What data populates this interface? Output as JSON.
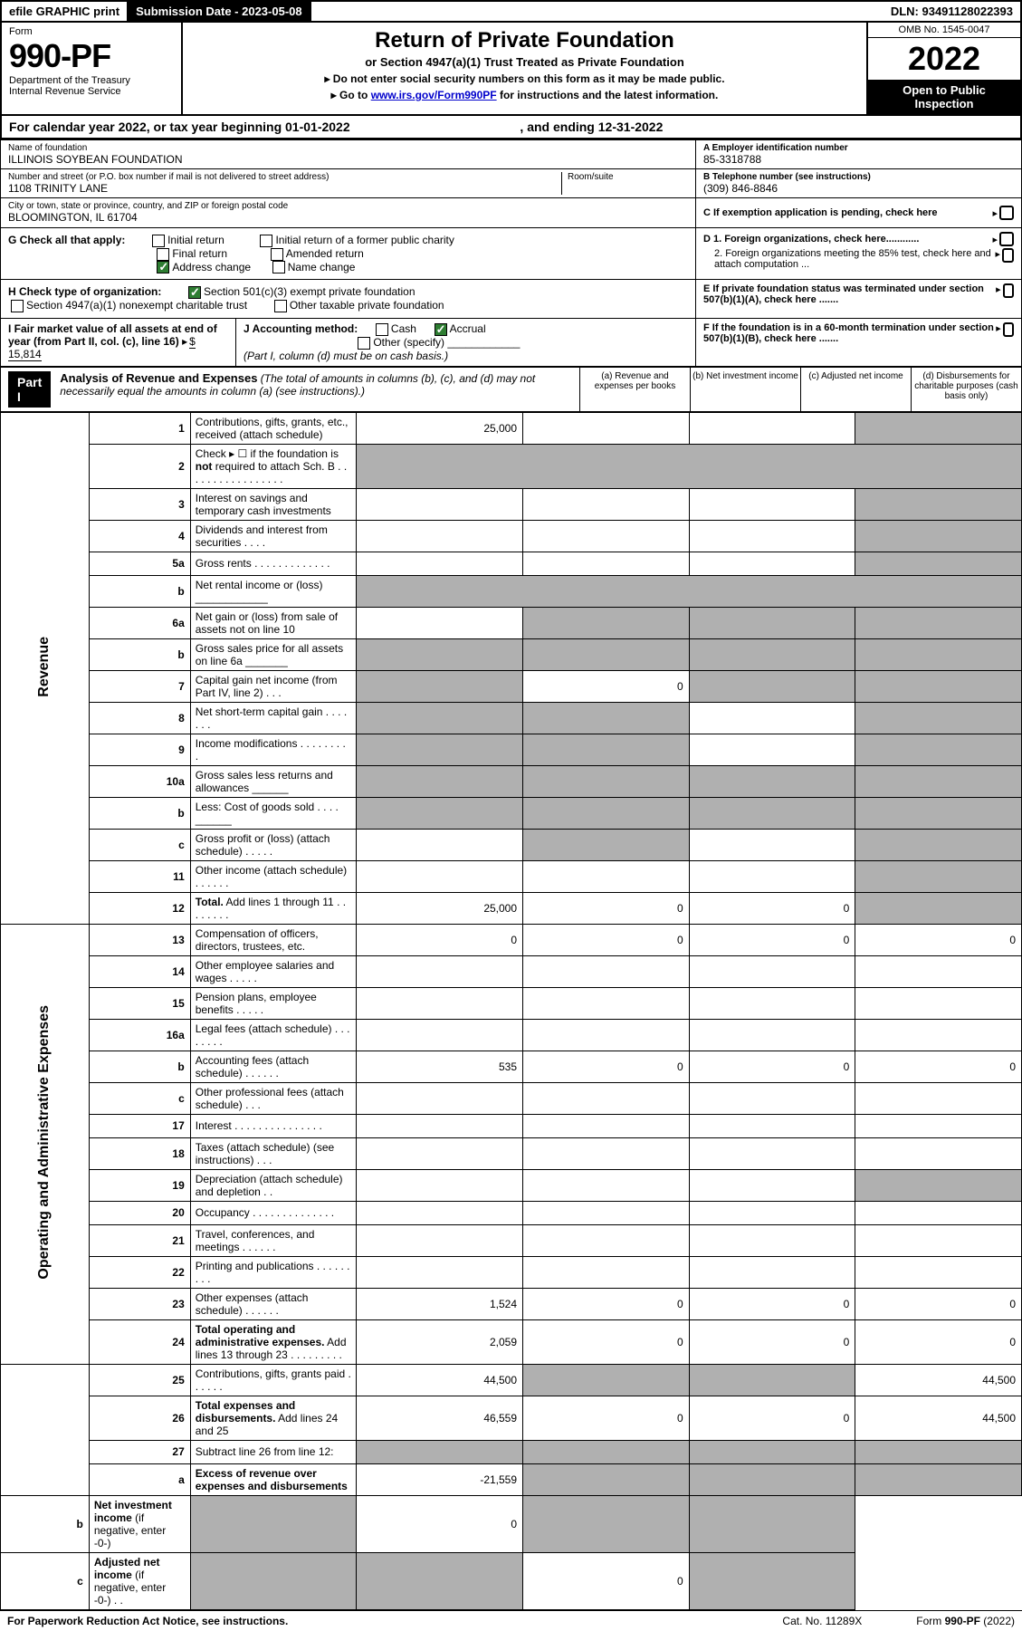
{
  "topbar": {
    "efile": "efile GRAPHIC print",
    "subdate_label": "Submission Date - ",
    "subdate": "2023-05-08",
    "dln_label": "DLN: ",
    "dln": "93491128022393"
  },
  "header": {
    "form_word": "Form",
    "form_no": "990-PF",
    "dept1": "Department of the Treasury",
    "dept2": "Internal Revenue Service",
    "title": "Return of Private Foundation",
    "subtitle": "or Section 4947(a)(1) Trust Treated as Private Foundation",
    "instr1": "▸ Do not enter social security numbers on this form as it may be made public.",
    "instr2_pre": "▸ Go to ",
    "instr2_link": "www.irs.gov/Form990PF",
    "instr2_post": " for instructions and the latest information.",
    "omb": "OMB No. 1545-0047",
    "year": "2022",
    "inspect1": "Open to Public",
    "inspect2": "Inspection"
  },
  "calyear": {
    "pre": "For calendar year 2022, or tax year beginning ",
    "begin": "01-01-2022",
    "mid": " , and ending ",
    "end": "12-31-2022"
  },
  "entity": {
    "name_label": "Name of foundation",
    "name": "ILLINOIS SOYBEAN FOUNDATION",
    "addr_label": "Number and street (or P.O. box number if mail is not delivered to street address)",
    "addr": "1108 TRINITY LANE",
    "room_label": "Room/suite",
    "city_label": "City or town, state or province, country, and ZIP or foreign postal code",
    "city": "BLOOMINGTON, IL  61704",
    "a_label": "A Employer identification number",
    "a_val": "85-3318788",
    "b_label": "B Telephone number (see instructions)",
    "b_val": "(309) 846-8846",
    "c_label": "C If exemption application is pending, check here"
  },
  "g": {
    "label": "G Check all that apply:",
    "opts": [
      "Initial return",
      "Initial return of a former public charity",
      "Final return",
      "Amended return",
      "Address change",
      "Name change"
    ],
    "checked_idx": 4,
    "d1": "D 1. Foreign organizations, check here............",
    "d2": "2. Foreign organizations meeting the 85% test, check here and attach computation ..."
  },
  "h": {
    "label": "H Check type of organization:",
    "opt1": "Section 501(c)(3) exempt private foundation",
    "opt2": "Section 4947(a)(1) nonexempt charitable trust",
    "opt3": "Other taxable private foundation",
    "e1": "E If private foundation status was terminated under section 507(b)(1)(A), check here ......."
  },
  "ij": {
    "i_label": "I Fair market value of all assets at end of year (from Part II, col. (c), line 16)",
    "i_val": "$  15,814",
    "j_label": "J Accounting method:",
    "j_cash": "Cash",
    "j_accrual": "Accrual",
    "j_other": "Other (specify)",
    "j_note": "(Part I, column (d) must be on cash basis.)",
    "f1": "F If the foundation is in a 60-month termination under section 507(b)(1)(B), check here ......."
  },
  "part1": {
    "label": "Part I",
    "title": "Analysis of Revenue and Expenses",
    "note": "(The total of amounts in columns (b), (c), and (d) may not necessarily equal the amounts in column (a) (see instructions).)",
    "cols": {
      "a": "(a) Revenue and expenses per books",
      "b": "(b) Net investment income",
      "c": "(c) Adjusted net income",
      "d": "(d) Disbursements for charitable purposes (cash basis only)"
    }
  },
  "sections": {
    "revenue": "Revenue",
    "opex": "Operating and Administrative Expenses"
  },
  "rows": [
    {
      "n": "1",
      "d": "Contributions, gifts, grants, etc., received (attach schedule)",
      "a": "25,000",
      "b": "",
      "c": "",
      "dcol": "",
      "dg": true
    },
    {
      "n": "2",
      "d": "Check ▸ ☐ if the foundation is <b>not</b> required to attach Sch. B  . . . . . . . . . . . . . . . . .",
      "nocols": true
    },
    {
      "n": "3",
      "d": "Interest on savings and temporary cash investments",
      "a": "",
      "b": "",
      "c": "",
      "dcol": "",
      "dg": true
    },
    {
      "n": "4",
      "d": "Dividends and interest from securities  . . . .",
      "a": "",
      "b": "",
      "c": "",
      "dcol": "",
      "dg": true
    },
    {
      "n": "5a",
      "d": "Gross rents  . . . . . . . . . . . . .",
      "a": "",
      "b": "",
      "c": "",
      "dcol": "",
      "dg": true
    },
    {
      "n": "b",
      "d": "Net rental income or (loss)  ____________",
      "nocols": true
    },
    {
      "n": "6a",
      "d": "Net gain or (loss) from sale of assets not on line 10",
      "a": "",
      "b": "",
      "bg": true,
      "c": "",
      "cg": true,
      "dcol": "",
      "dg": true
    },
    {
      "n": "b",
      "d": "Gross sales price for all assets on line 6a _______",
      "nocols": true,
      "allgrey": true
    },
    {
      "n": "7",
      "d": "Capital gain net income (from Part IV, line 2)  . . .",
      "a": "",
      "ag": true,
      "b": "0",
      "c": "",
      "cg": true,
      "dcol": "",
      "dg": true
    },
    {
      "n": "8",
      "d": "Net short-term capital gain  . . . . . . .",
      "a": "",
      "ag": true,
      "b": "",
      "bg": true,
      "c": "",
      "dcol": "",
      "dg": true
    },
    {
      "n": "9",
      "d": "Income modifications  . . . . . . . . .",
      "a": "",
      "ag": true,
      "b": "",
      "bg": true,
      "c": "",
      "dcol": "",
      "dg": true
    },
    {
      "n": "10a",
      "d": "Gross sales less returns and allowances  ______",
      "nocols": true,
      "allgrey": true
    },
    {
      "n": "b",
      "d": "Less: Cost of goods sold   . . . .  ______",
      "nocols": true,
      "allgrey": true
    },
    {
      "n": "c",
      "d": "Gross profit or (loss) (attach schedule)  . . . . .",
      "a": "",
      "b": "",
      "bg": true,
      "c": "",
      "dcol": "",
      "dg": true
    },
    {
      "n": "11",
      "d": "Other income (attach schedule)  . . . . . .",
      "a": "",
      "b": "",
      "c": "",
      "dcol": "",
      "dg": true
    },
    {
      "n": "12",
      "d": "<b>Total.</b> Add lines 1 through 11  . . . . . . . .",
      "a": "25,000",
      "b": "0",
      "c": "0",
      "dcol": "",
      "dg": true
    },
    {
      "n": "13",
      "d": "Compensation of officers, directors, trustees, etc.",
      "a": "0",
      "b": "0",
      "c": "0",
      "dcol": "0",
      "sec": "opex"
    },
    {
      "n": "14",
      "d": "Other employee salaries and wages  . . . . .",
      "a": "",
      "b": "",
      "c": "",
      "dcol": ""
    },
    {
      "n": "15",
      "d": "Pension plans, employee benefits  . . . . .",
      "a": "",
      "b": "",
      "c": "",
      "dcol": ""
    },
    {
      "n": "16a",
      "d": "Legal fees (attach schedule) . . . . . . . .",
      "a": "",
      "b": "",
      "c": "",
      "dcol": ""
    },
    {
      "n": "b",
      "d": "Accounting fees (attach schedule) . . . . . .",
      "a": "535",
      "b": "0",
      "c": "0",
      "dcol": "0"
    },
    {
      "n": "c",
      "d": "Other professional fees (attach schedule)  . . .",
      "a": "",
      "b": "",
      "c": "",
      "dcol": ""
    },
    {
      "n": "17",
      "d": "Interest  . . . . . . . . . . . . . . .",
      "a": "",
      "b": "",
      "c": "",
      "dcol": ""
    },
    {
      "n": "18",
      "d": "Taxes (attach schedule) (see instructions)  . . .",
      "a": "",
      "b": "",
      "c": "",
      "dcol": ""
    },
    {
      "n": "19",
      "d": "Depreciation (attach schedule) and depletion  . .",
      "a": "",
      "b": "",
      "c": "",
      "dcol": "",
      "dg": true
    },
    {
      "n": "20",
      "d": "Occupancy . . . . . . . . . . . . . .",
      "a": "",
      "b": "",
      "c": "",
      "dcol": ""
    },
    {
      "n": "21",
      "d": "Travel, conferences, and meetings . . . . . .",
      "a": "",
      "b": "",
      "c": "",
      "dcol": ""
    },
    {
      "n": "22",
      "d": "Printing and publications . . . . . . . . .",
      "a": "",
      "b": "",
      "c": "",
      "dcol": ""
    },
    {
      "n": "23",
      "d": "Other expenses (attach schedule) . . . . . .",
      "a": "1,524",
      "b": "0",
      "c": "0",
      "dcol": "0"
    },
    {
      "n": "24",
      "d": "<b>Total operating and administrative expenses.</b> Add lines 13 through 23  . . . . . . . . .",
      "a": "2,059",
      "b": "0",
      "c": "0",
      "dcol": "0"
    },
    {
      "n": "25",
      "d": "Contributions, gifts, grants paid  . . . . . .",
      "a": "44,500",
      "b": "",
      "bg": true,
      "c": "",
      "cg": true,
      "dcol": "44,500"
    },
    {
      "n": "26",
      "d": "<b>Total expenses and disbursements.</b> Add lines 24 and 25",
      "a": "46,559",
      "b": "0",
      "c": "0",
      "dcol": "44,500"
    },
    {
      "n": "27",
      "d": "Subtract line 26 from line 12:",
      "a": "",
      "ag": true,
      "b": "",
      "bg": true,
      "c": "",
      "cg": true,
      "dcol": "",
      "dg": true,
      "sec": "none"
    },
    {
      "n": "a",
      "d": "<b>Excess of revenue over expenses and disbursements</b>",
      "a": "-21,559",
      "b": "",
      "bg": true,
      "c": "",
      "cg": true,
      "dcol": "",
      "dg": true
    },
    {
      "n": "b",
      "d": "<b>Net investment income</b> (if negative, enter -0-)",
      "a": "",
      "ag": true,
      "b": "0",
      "c": "",
      "cg": true,
      "dcol": "",
      "dg": true
    },
    {
      "n": "c",
      "d": "<b>Adjusted net income</b> (if negative, enter -0-)  . .",
      "a": "",
      "ag": true,
      "b": "",
      "bg": true,
      "c": "0",
      "dcol": "",
      "dg": true
    }
  ],
  "footer": {
    "left": "For Paperwork Reduction Act Notice, see instructions.",
    "mid": "Cat. No. 11289X",
    "right": "Form 990-PF (2022)"
  },
  "colors": {
    "grey": "#b0b0b0",
    "link": "#0000cc",
    "check": "#2e7d32"
  }
}
